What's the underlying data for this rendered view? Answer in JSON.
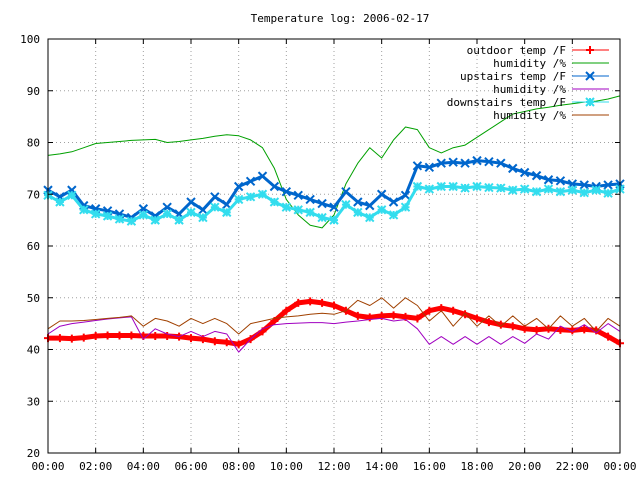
{
  "chart_data": {
    "type": "line",
    "title": "Temperature log: 2006-02-17",
    "xlabel": "",
    "ylabel": "",
    "x_ticks": [
      "00:00",
      "02:00",
      "04:00",
      "06:00",
      "08:00",
      "10:00",
      "12:00",
      "14:00",
      "16:00",
      "18:00",
      "20:00",
      "22:00",
      "00:00"
    ],
    "y_ticks": [
      20,
      30,
      40,
      50,
      60,
      70,
      80,
      90,
      100
    ],
    "xlim": [
      0,
      24
    ],
    "ylim": [
      20,
      100
    ],
    "grid": true,
    "legend_position": "top-right",
    "series": [
      {
        "name": "outdoor temp /F",
        "color": "#ff0000",
        "marker": "plus",
        "x": [
          0,
          0.5,
          1,
          1.5,
          2,
          2.5,
          3,
          3.5,
          4,
          4.5,
          5,
          5.5,
          6,
          6.5,
          7,
          7.5,
          8,
          8.5,
          9,
          9.5,
          10,
          10.5,
          11,
          11.5,
          12,
          12.5,
          13,
          13.5,
          14,
          14.5,
          15,
          15.5,
          16,
          16.5,
          17,
          17.5,
          18,
          18.5,
          19,
          19.5,
          20,
          20.5,
          21,
          21.5,
          22,
          22.5,
          23,
          23.5,
          24
        ],
        "values": [
          42.2,
          42.2,
          42.1,
          42.3,
          42.6,
          42.7,
          42.7,
          42.7,
          42.6,
          42.6,
          42.6,
          42.5,
          42.2,
          42.0,
          41.6,
          41.4,
          41.0,
          42.0,
          43.5,
          45.5,
          47.5,
          49.0,
          49.3,
          49.0,
          48.5,
          47.5,
          46.5,
          46.2,
          46.5,
          46.6,
          46.3,
          46.0,
          47.5,
          48.0,
          47.5,
          46.8,
          46.0,
          45.3,
          44.8,
          44.5,
          44.0,
          43.8,
          44.0,
          43.8,
          43.7,
          43.9,
          43.7,
          42.5,
          41.2
        ]
      },
      {
        "name": "humidity /%",
        "color": "#00a000",
        "marker": "none",
        "x": [
          0,
          0.5,
          1,
          1.5,
          2,
          2.5,
          3,
          3.5,
          4,
          4.5,
          5,
          5.5,
          6,
          6.5,
          7,
          7.5,
          8,
          8.5,
          9,
          9.5,
          10,
          10.5,
          11,
          11.5,
          12,
          12.5,
          13,
          13.5,
          14,
          14.5,
          15,
          15.5,
          16,
          16.5,
          17,
          17.5,
          18,
          18.5,
          19,
          19.5,
          20,
          20.5,
          21,
          21.5,
          22,
          22.5,
          23,
          23.5,
          24
        ],
        "values": [
          77.5,
          77.8,
          78.2,
          79.0,
          79.8,
          80.0,
          80.2,
          80.4,
          80.5,
          80.6,
          80.0,
          80.2,
          80.5,
          80.8,
          81.2,
          81.5,
          81.3,
          80.5,
          79.0,
          75.0,
          69.0,
          66.0,
          64.0,
          63.5,
          66.0,
          72.0,
          76.0,
          79.0,
          77.0,
          80.5,
          83.0,
          82.5,
          79.0,
          78.0,
          79.0,
          79.5,
          81.0,
          82.5,
          84.0,
          85.5,
          86.0,
          86.5,
          86.8,
          87.2,
          87.5,
          87.8,
          88.0,
          88.4,
          89.0
        ]
      },
      {
        "name": "upstairs temp /F",
        "color": "#0066cc",
        "marker": "x",
        "x": [
          0,
          0.5,
          1,
          1.5,
          2,
          2.5,
          3,
          3.5,
          4,
          4.5,
          5,
          5.5,
          6,
          6.5,
          7,
          7.5,
          8,
          8.5,
          9,
          9.5,
          10,
          10.5,
          11,
          11.5,
          12,
          12.5,
          13,
          13.5,
          14,
          14.5,
          15,
          15.5,
          16,
          16.5,
          17,
          17.5,
          18,
          18.5,
          19,
          19.5,
          20,
          20.5,
          21,
          21.5,
          22,
          22.5,
          23,
          23.5,
          24
        ],
        "values": [
          70.8,
          69.5,
          70.8,
          67.8,
          67.2,
          66.8,
          66.2,
          65.5,
          67.2,
          65.8,
          67.5,
          66.2,
          68.5,
          67.0,
          69.5,
          68.0,
          71.5,
          72.5,
          73.5,
          71.5,
          70.5,
          69.8,
          69.0,
          68.2,
          67.5,
          70.5,
          68.5,
          67.8,
          70.0,
          68.5,
          69.8,
          75.5,
          75.2,
          76.0,
          76.2,
          76.0,
          76.5,
          76.3,
          76.0,
          75.0,
          74.2,
          73.6,
          72.8,
          72.6,
          72.0,
          71.8,
          71.5,
          71.8,
          72.0
        ]
      },
      {
        "name": "humidity /%",
        "color": "#a000c0",
        "marker": "none",
        "x": [
          0,
          0.5,
          1,
          1.5,
          2,
          2.5,
          3,
          3.5,
          4,
          4.5,
          5,
          5.5,
          6,
          6.5,
          7,
          7.5,
          8,
          8.5,
          9,
          9.5,
          10,
          10.5,
          11,
          11.5,
          12,
          12.5,
          13,
          13.5,
          14,
          14.5,
          15,
          15.5,
          16,
          16.5,
          17,
          17.5,
          18,
          18.5,
          19,
          19.5,
          20,
          20.5,
          21,
          21.5,
          22,
          22.5,
          23,
          23.5,
          24
        ],
        "values": [
          43.0,
          44.5,
          45.0,
          45.3,
          45.6,
          45.9,
          46.1,
          46.3,
          42.0,
          44.0,
          43.0,
          42.5,
          43.5,
          42.5,
          43.5,
          43.0,
          39.5,
          42.0,
          44.0,
          44.8,
          45.0,
          45.1,
          45.2,
          45.2,
          45.0,
          45.3,
          45.5,
          45.8,
          46.0,
          45.5,
          45.8,
          44.0,
          41.0,
          42.5,
          41.0,
          42.5,
          41.0,
          42.5,
          41.0,
          42.5,
          41.2,
          43.0,
          42.0,
          44.5,
          43.5,
          44.8,
          43.2,
          45.0,
          43.5
        ]
      },
      {
        "name": "downstairs temp /F",
        "color": "#33ddee",
        "marker": "star",
        "x": [
          0,
          0.5,
          1,
          1.5,
          2,
          2.5,
          3,
          3.5,
          4,
          4.5,
          5,
          5.5,
          6,
          6.5,
          7,
          7.5,
          8,
          8.5,
          9,
          9.5,
          10,
          10.5,
          11,
          11.5,
          12,
          12.5,
          13,
          13.5,
          14,
          14.5,
          15,
          15.5,
          16,
          16.5,
          17,
          17.5,
          18,
          18.5,
          19,
          19.5,
          20,
          20.5,
          21,
          21.5,
          22,
          22.5,
          23,
          23.5,
          24
        ],
        "values": [
          69.8,
          68.5,
          69.8,
          67.0,
          66.2,
          65.8,
          65.2,
          64.8,
          66.0,
          65.0,
          66.2,
          65.0,
          66.5,
          65.5,
          67.5,
          66.5,
          69.0,
          69.5,
          70.0,
          68.5,
          67.5,
          67.0,
          66.5,
          65.5,
          65.0,
          68.0,
          66.5,
          65.5,
          67.0,
          66.0,
          67.5,
          71.5,
          71.0,
          71.5,
          71.5,
          71.2,
          71.5,
          71.3,
          71.2,
          70.8,
          71.0,
          70.5,
          71.0,
          70.5,
          70.8,
          70.3,
          70.8,
          70.2,
          71.0
        ]
      },
      {
        "name": "humidity /%",
        "color": "#a04000",
        "marker": "none",
        "x": [
          0,
          0.5,
          1,
          1.5,
          2,
          2.5,
          3,
          3.5,
          4,
          4.5,
          5,
          5.5,
          6,
          6.5,
          7,
          7.5,
          8,
          8.5,
          9,
          9.5,
          10,
          10.5,
          11,
          11.5,
          12,
          12.5,
          13,
          13.5,
          14,
          14.5,
          15,
          15.5,
          16,
          16.5,
          17,
          17.5,
          18,
          18.5,
          19,
          19.5,
          20,
          20.5,
          21,
          21.5,
          22,
          22.5,
          23,
          23.5,
          24
        ],
        "values": [
          44.0,
          45.5,
          45.5,
          45.6,
          45.8,
          46.0,
          46.2,
          46.5,
          44.5,
          46.0,
          45.5,
          44.5,
          46.0,
          45.0,
          46.0,
          45.0,
          43.0,
          45.0,
          45.5,
          46.0,
          46.3,
          46.5,
          46.8,
          47.0,
          46.8,
          47.5,
          49.5,
          48.5,
          50.0,
          48.0,
          50.0,
          48.5,
          45.5,
          47.5,
          44.5,
          47.0,
          44.5,
          46.5,
          44.5,
          46.5,
          44.5,
          46.0,
          44.0,
          46.5,
          44.5,
          46.0,
          43.5,
          46.0,
          44.5
        ]
      }
    ]
  }
}
